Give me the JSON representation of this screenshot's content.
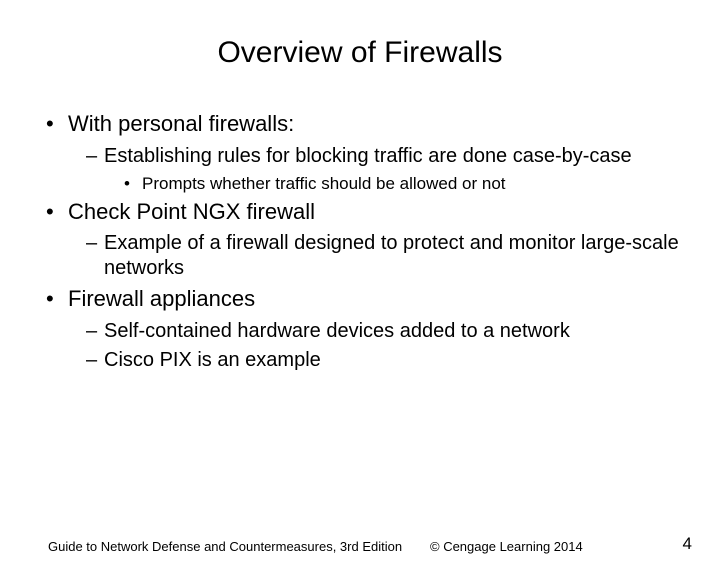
{
  "title": "Overview of Firewalls",
  "bullets": {
    "b1": "With personal firewalls:",
    "b1_1": "Establishing rules for blocking traffic are done case-by-case",
    "b1_1_1": "Prompts whether traffic should be allowed or not",
    "b2": "Check Point NGX firewall",
    "b2_1": "Example of a firewall designed to protect and monitor large-scale networks",
    "b3": "Firewall appliances",
    "b3_1": "Self-contained hardware devices added to a network",
    "b3_2": "Cisco PIX is an example"
  },
  "footer": {
    "left": "Guide to Network Defense and Countermeasures, 3rd Edition",
    "mid": "© Cengage Learning  2014",
    "page": "4"
  },
  "colors": {
    "background": "#ffffff",
    "text": "#000000"
  },
  "typography": {
    "title_fontsize": 30,
    "lvl1_fontsize": 22,
    "lvl2_fontsize": 20,
    "lvl3_fontsize": 17,
    "footer_fontsize": 13,
    "page_fontsize": 17,
    "font_family": "Arial"
  }
}
